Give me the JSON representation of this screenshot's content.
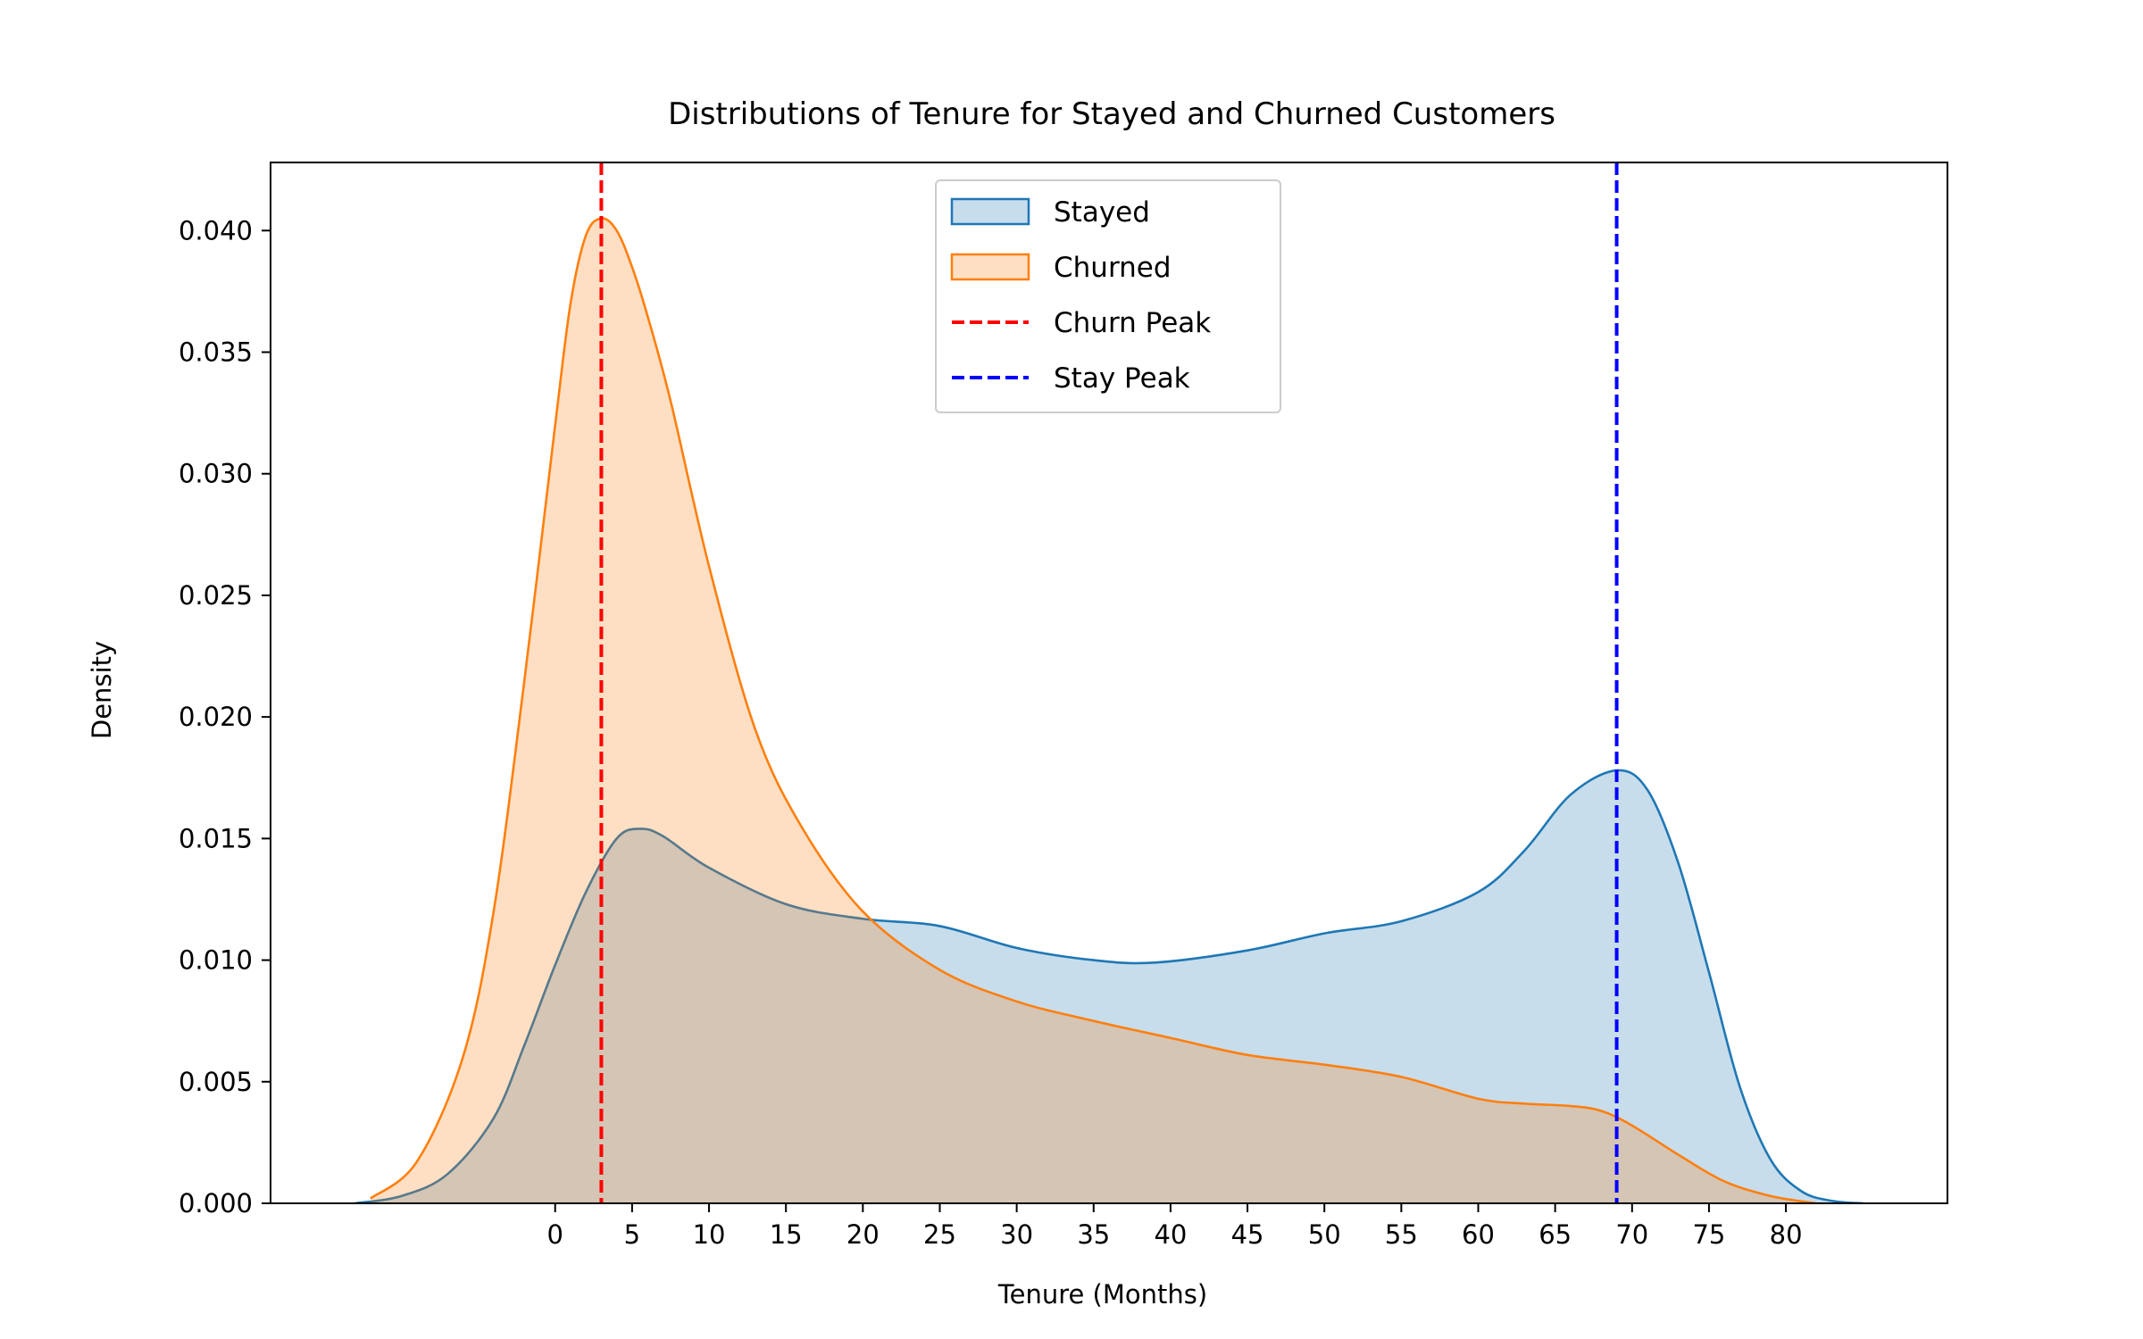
{
  "chart_data": {
    "type": "area",
    "title": "Distributions of Tenure for Stayed and Churned Customers",
    "xlabel": "Tenure (Months)",
    "ylabel": "Density",
    "xlim": [
      -18.5,
      90.5
    ],
    "ylim": [
      0,
      0.0428
    ],
    "x_ticks": [
      0,
      5,
      10,
      15,
      20,
      25,
      30,
      35,
      40,
      45,
      50,
      55,
      60,
      65,
      70,
      75,
      80
    ],
    "y_ticks": [
      0.0,
      0.005,
      0.01,
      0.015,
      0.02,
      0.025,
      0.03,
      0.035,
      0.04
    ],
    "y_tick_labels": [
      "0.000",
      "0.005",
      "0.010",
      "0.015",
      "0.020",
      "0.025",
      "0.030",
      "0.035",
      "0.040"
    ],
    "grid": false,
    "legend_position": "top-center",
    "series": [
      {
        "name": "Stayed",
        "kind": "kde",
        "color": "#1f77b4",
        "fill": "#1f77b4",
        "fill_opacity": 0.25,
        "x": [
          -13,
          -10,
          -7,
          -4,
          -2,
          0,
          2,
          4,
          5.5,
          7,
          10,
          15,
          20,
          25,
          30,
          35,
          39,
          45,
          50,
          55,
          60,
          63,
          66,
          69,
          71,
          73,
          75,
          77,
          79,
          81,
          83,
          85
        ],
        "y": [
          0.0,
          0.0003,
          0.0012,
          0.0035,
          0.0065,
          0.0098,
          0.0128,
          0.015,
          0.0154,
          0.0151,
          0.0138,
          0.0123,
          0.0117,
          0.0114,
          0.0105,
          0.01,
          0.0099,
          0.0104,
          0.0111,
          0.0116,
          0.0128,
          0.0145,
          0.0168,
          0.0178,
          0.017,
          0.014,
          0.0095,
          0.0048,
          0.0018,
          0.0005,
          0.0001,
          0.0
        ]
      },
      {
        "name": "Churned",
        "kind": "kde",
        "color": "#ff7f0e",
        "fill": "#ff7f0e",
        "fill_opacity": 0.25,
        "x": [
          -12,
          -9,
          -6,
          -4,
          -2,
          0,
          1,
          2,
          3,
          4,
          5,
          6,
          7.5,
          10,
          13,
          16,
          20,
          25,
          30,
          35,
          40,
          45,
          50,
          55,
          60,
          63,
          66,
          68,
          70,
          73,
          76,
          79,
          82
        ],
        "y": [
          0.0002,
          0.0017,
          0.006,
          0.012,
          0.0215,
          0.032,
          0.037,
          0.0398,
          0.0405,
          0.04,
          0.0385,
          0.0365,
          0.033,
          0.0262,
          0.0195,
          0.0155,
          0.012,
          0.0096,
          0.0083,
          0.0075,
          0.0068,
          0.0061,
          0.0057,
          0.0052,
          0.0043,
          0.0041,
          0.004,
          0.0038,
          0.0032,
          0.002,
          0.0009,
          0.0003,
          0.0
        ]
      }
    ],
    "vlines": [
      {
        "name": "Churn Peak",
        "x": 3,
        "color": "#ff0000",
        "style": "dashed"
      },
      {
        "name": "Stay Peak",
        "x": 69,
        "color": "#0000ff",
        "style": "dashed"
      }
    ]
  }
}
